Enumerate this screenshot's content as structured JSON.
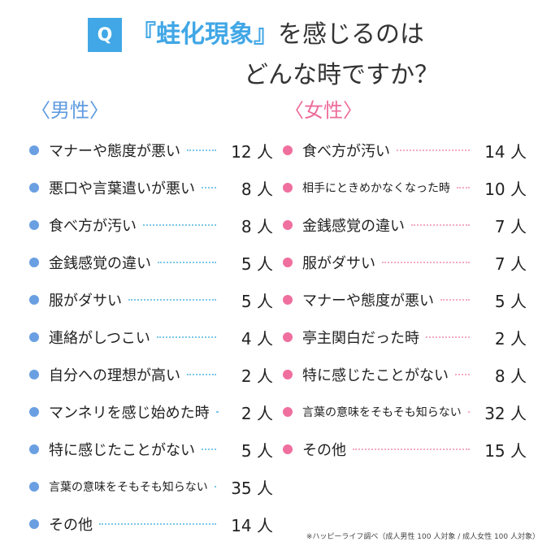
{
  "header": {
    "badge": "Q",
    "title_highlight": "『蛙化現象』",
    "title_rest": "を感じるのは",
    "title_line2": "どんな時ですか？"
  },
  "male": {
    "heading": "〈男性〉",
    "items": [
      {
        "label": "マナーや態度が悪い",
        "count": "12 人"
      },
      {
        "label": "悪口や言葉遣いが悪い",
        "count": "8 人"
      },
      {
        "label": "食べ方が汚い",
        "count": "8 人"
      },
      {
        "label": "金銭感覚の違い",
        "count": "5 人"
      },
      {
        "label": "服がダサい",
        "count": "5 人"
      },
      {
        "label": "連絡がしつこい",
        "count": "4 人"
      },
      {
        "label": "自分への理想が高い",
        "count": "2 人"
      },
      {
        "label": "マンネリを感じ始めた時",
        "count": "2 人"
      },
      {
        "label": "特に感じたことがない",
        "count": "5 人"
      },
      {
        "label": "言葉の意味をそもそも知らない",
        "count": "35 人"
      },
      {
        "label": "その他",
        "count": "14 人"
      }
    ]
  },
  "female": {
    "heading": "〈女性〉",
    "items": [
      {
        "label": "食べ方が汚い",
        "count": "14 人"
      },
      {
        "label": "相手にときめかなくなった時",
        "count": "10 人"
      },
      {
        "label": "金銭感覚の違い",
        "count": "7 人"
      },
      {
        "label": "服がダサい",
        "count": "7 人"
      },
      {
        "label": "マナーや態度が悪い",
        "count": "5 人"
      },
      {
        "label": "亭主関白だった時",
        "count": "2 人"
      },
      {
        "label": "特に感じたことがない",
        "count": "8 人"
      },
      {
        "label": "言葉の意味をそもそも知らない",
        "count": "32 人"
      },
      {
        "label": "その他",
        "count": "15 人"
      }
    ]
  },
  "footnote": "※ハッピーライフ調べ（成人男性 100 人対象 / 成人女性 100 人対象）"
}
